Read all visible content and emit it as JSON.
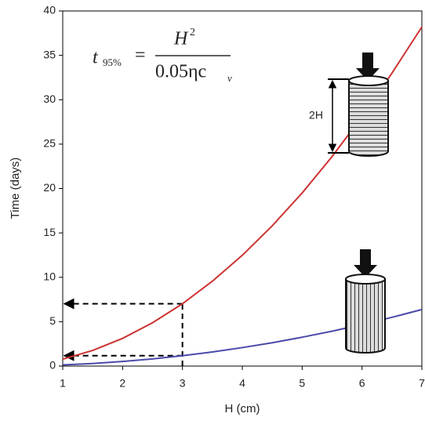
{
  "chart_data": {
    "type": "line",
    "xlabel": "H (cm)",
    "ylabel": "Time (days)",
    "x": [
      1,
      1.5,
      2,
      2.5,
      3,
      3.5,
      4,
      4.5,
      5,
      5.5,
      6,
      6.5,
      7
    ],
    "series": [
      {
        "color": "#cc3333",
        "values": [
          0.78,
          1.76,
          3.12,
          4.88,
          7.02,
          9.56,
          12.48,
          15.8,
          19.5,
          23.6,
          28.1,
          33.0,
          38.2
        ]
      },
      {
        "color": "#4a4aaa",
        "values": [
          0.13,
          0.29,
          0.52,
          0.81,
          1.17,
          1.59,
          2.08,
          2.63,
          3.25,
          3.93,
          4.68,
          5.49,
          6.37
        ]
      }
    ],
    "xlim": [
      1,
      7
    ],
    "xticks": [
      1,
      2,
      3,
      4,
      5,
      6,
      7
    ],
    "ylim": [
      0,
      40
    ],
    "yticks": [
      0,
      5,
      10,
      15,
      20,
      25,
      30,
      35,
      40
    ],
    "grid": false,
    "formula": {
      "lhs": "t",
      "lhs_sub": "95%",
      "eq": "=",
      "num": "H",
      "num_sup": "2",
      "den": "0.05ηc",
      "den_sub": "v"
    },
    "annotation": "2H"
  }
}
